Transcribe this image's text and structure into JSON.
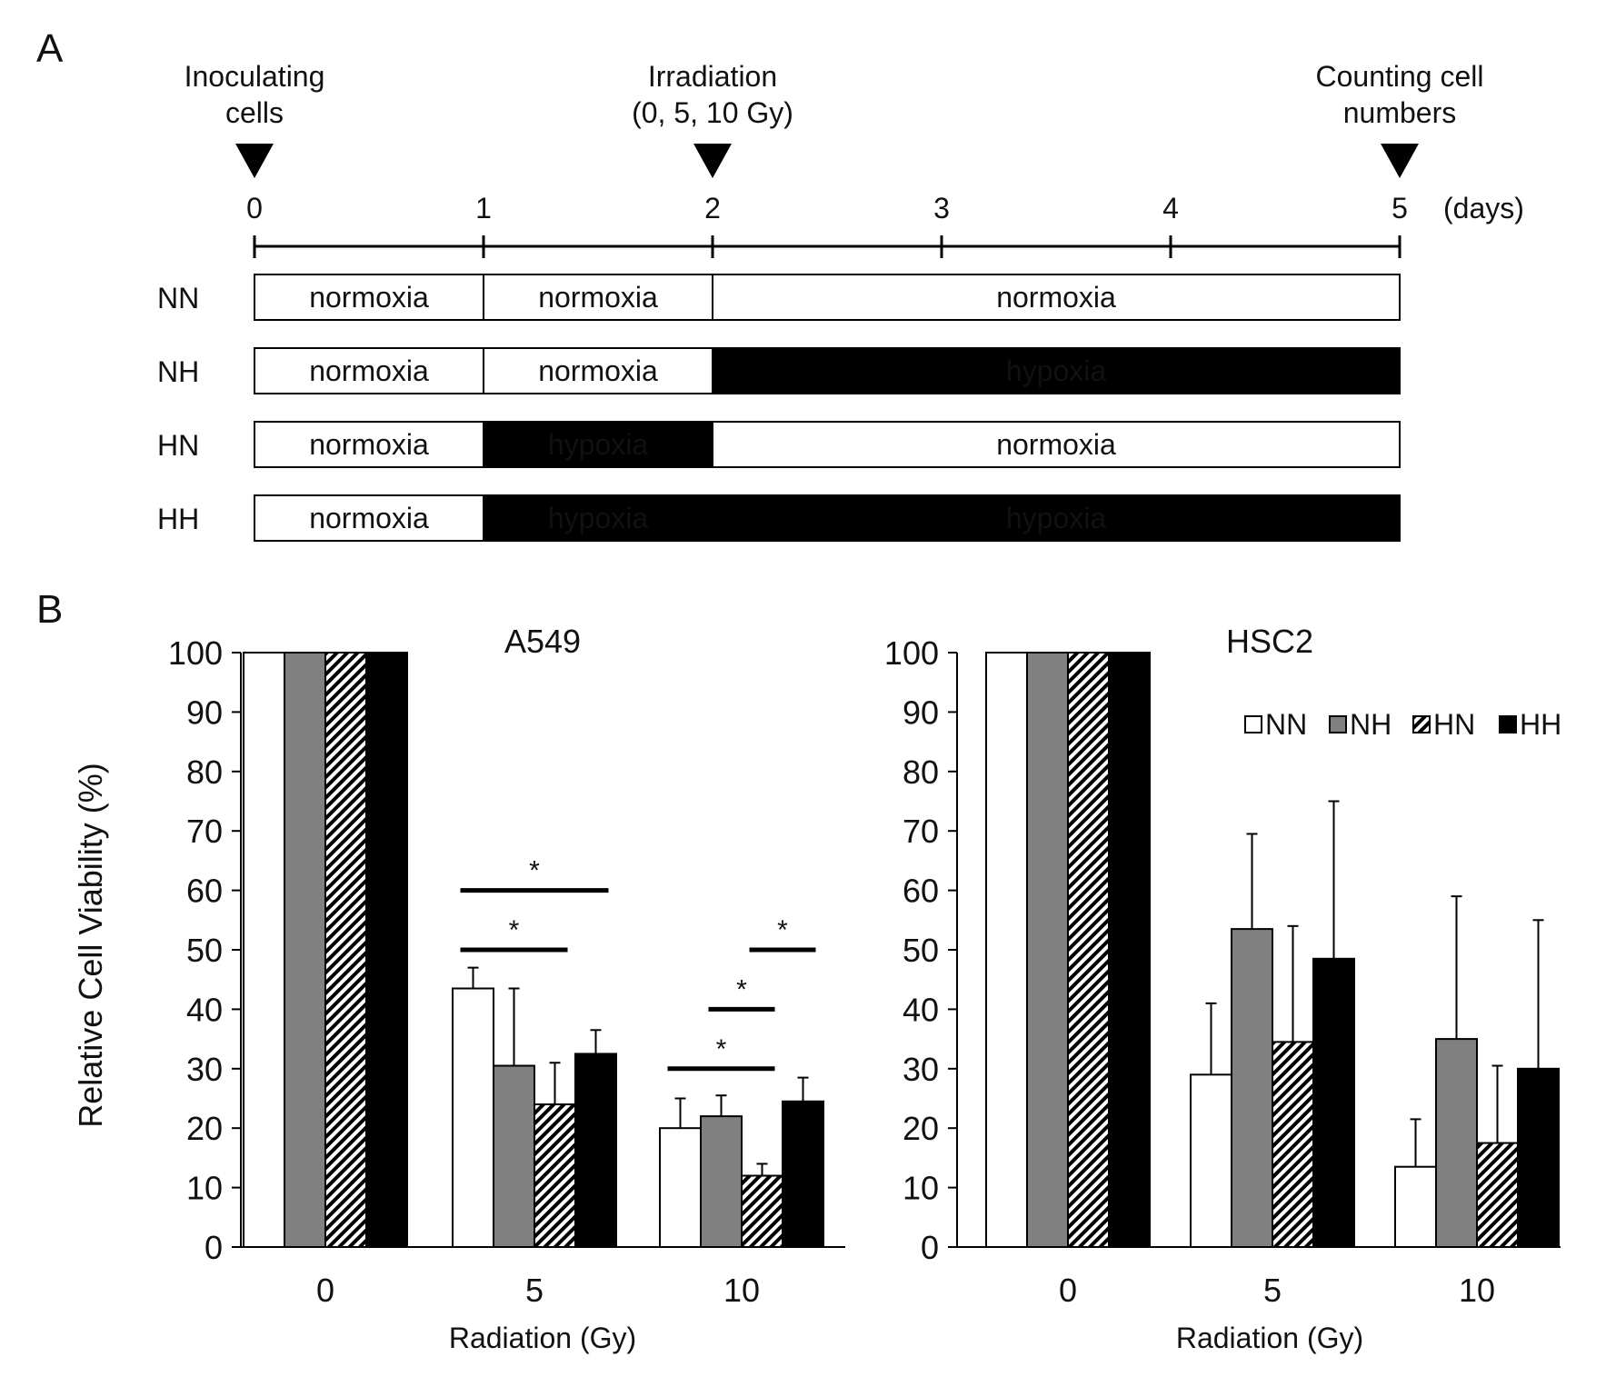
{
  "panel_a": {
    "label": "A",
    "events": [
      {
        "label_lines": [
          "Inoculating",
          "cells"
        ],
        "day": 0
      },
      {
        "label_lines": [
          "Irradiation",
          "(0, 5, 10 Gy)"
        ],
        "day": 2
      },
      {
        "label_lines": [
          "Counting cell",
          "numbers"
        ],
        "day": 5
      }
    ],
    "ticks": [
      "0",
      "1",
      "2",
      "3",
      "4",
      "5"
    ],
    "unit": "(days)",
    "rows": [
      {
        "name": "NN",
        "segments": [
          {
            "text": "normoxia",
            "start": 0,
            "end": 1,
            "state": "normoxia"
          },
          {
            "text": "normoxia",
            "start": 1,
            "end": 2,
            "state": "normoxia"
          },
          {
            "text": "normoxia",
            "start": 2,
            "end": 5,
            "state": "normoxia"
          }
        ]
      },
      {
        "name": "NH",
        "segments": [
          {
            "text": "normoxia",
            "start": 0,
            "end": 1,
            "state": "normoxia"
          },
          {
            "text": "normoxia",
            "start": 1,
            "end": 2,
            "state": "normoxia"
          },
          {
            "text": "hypoxia",
            "start": 2,
            "end": 5,
            "state": "hypoxia"
          }
        ]
      },
      {
        "name": "HN",
        "segments": [
          {
            "text": "normoxia",
            "start": 0,
            "end": 1,
            "state": "normoxia"
          },
          {
            "text": "hypoxia",
            "start": 1,
            "end": 2,
            "state": "hypoxia"
          },
          {
            "text": "normoxia",
            "start": 2,
            "end": 5,
            "state": "normoxia"
          }
        ]
      },
      {
        "name": "HH",
        "segments": [
          {
            "text": "normoxia",
            "start": 0,
            "end": 1,
            "state": "normoxia"
          },
          {
            "text": "hypoxia",
            "start": 1,
            "end": 2,
            "state": "hypoxia"
          },
          {
            "text": "hypoxia",
            "start": 2,
            "end": 5,
            "state": "hypoxia"
          }
        ]
      }
    ]
  },
  "panel_b": {
    "label": "B",
    "ylabel": "Relative Cell Viability (%)",
    "legend_items": [
      "NN",
      "NH",
      "HN",
      "HH"
    ]
  },
  "colors": {
    "NN": "#ffffff",
    "NH": "#808080",
    "HN": "hatch",
    "HH": "#000000",
    "hypoxia": "#000000",
    "normoxia": "#ffffff"
  },
  "chart_data": [
    {
      "type": "bar",
      "title": "A549",
      "categories": [
        "0",
        "5",
        "10"
      ],
      "xlabel": "Radiation (Gy)",
      "ylabel": "Relative Cell Viability (%)",
      "ylim": [
        0,
        100
      ],
      "yticks": [
        "0",
        "10",
        "20",
        "30",
        "40",
        "50",
        "60",
        "70",
        "80",
        "90",
        "100"
      ],
      "series": [
        {
          "name": "NN",
          "values": [
            100,
            43.5,
            20
          ],
          "errors": [
            0,
            3.5,
            5
          ]
        },
        {
          "name": "NH",
          "values": [
            100,
            30.5,
            22
          ],
          "errors": [
            0,
            13,
            3.5
          ]
        },
        {
          "name": "HN",
          "values": [
            100,
            24,
            12
          ],
          "errors": [
            0,
            7,
            2
          ]
        },
        {
          "name": "HH",
          "values": [
            100,
            32.5,
            24.5
          ],
          "errors": [
            0,
            4,
            4
          ]
        }
      ],
      "annotations": [
        {
          "text": "*",
          "group": 1,
          "from": 0,
          "to": 3,
          "y": 60
        },
        {
          "text": "*",
          "group": 1,
          "from": 0,
          "to": 2,
          "y": 50
        },
        {
          "text": "*",
          "group": 2,
          "from": 0,
          "to": 2,
          "y": 30
        },
        {
          "text": "*",
          "group": 2,
          "from": 1,
          "to": 2,
          "y": 40
        },
        {
          "text": "*",
          "group": 2,
          "from": 2,
          "to": 3,
          "y": 50
        }
      ]
    },
    {
      "type": "bar",
      "title": "HSC2",
      "categories": [
        "0",
        "5",
        "10"
      ],
      "xlabel": "Radiation (Gy)",
      "ylabel": "Relative Cell Viability (%)",
      "ylim": [
        0,
        100
      ],
      "yticks": [
        "0",
        "10",
        "20",
        "30",
        "40",
        "50",
        "60",
        "70",
        "80",
        "90",
        "100"
      ],
      "legend": "top-right",
      "series": [
        {
          "name": "NN",
          "values": [
            100,
            29,
            13.5
          ],
          "errors": [
            0,
            12,
            8
          ]
        },
        {
          "name": "NH",
          "values": [
            100,
            53.5,
            35
          ],
          "errors": [
            0,
            16,
            24
          ]
        },
        {
          "name": "HN",
          "values": [
            100,
            34.5,
            17.5
          ],
          "errors": [
            0,
            19.5,
            13
          ]
        },
        {
          "name": "HH",
          "values": [
            100,
            48.5,
            30
          ],
          "errors": [
            0,
            26.5,
            25
          ]
        }
      ],
      "annotations": []
    }
  ]
}
